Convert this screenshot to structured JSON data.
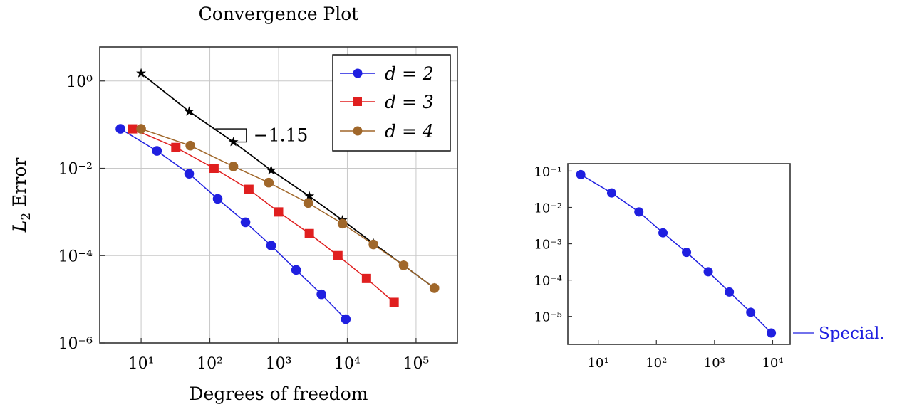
{
  "chart_data": [
    {
      "type": "line",
      "title": "Convergence Plot",
      "xlabel": "Degrees of freedom",
      "ylabel": "L₂ Error",
      "xscale": "log",
      "yscale": "log",
      "xlim": [
        2.5,
        400000
      ],
      "ylim": [
        1e-06,
        6
      ],
      "grid": true,
      "legend_position": "top-right",
      "xticks": [
        {
          "value": 10,
          "label": "10¹"
        },
        {
          "value": 100,
          "label": "10²"
        },
        {
          "value": 1000,
          "label": "10³"
        },
        {
          "value": 10000,
          "label": "10⁴"
        },
        {
          "value": 100000,
          "label": "10⁵"
        }
      ],
      "yticks": [
        {
          "value": 1,
          "label": "10⁰"
        },
        {
          "value": 0.01,
          "label": "10⁻²"
        },
        {
          "value": 0.0001,
          "label": "10⁻⁴"
        },
        {
          "value": 1e-06,
          "label": "10⁻⁶"
        }
      ],
      "series": [
        {
          "name": "d = 2",
          "color": "#1f1fe0",
          "marker": "circle",
          "x": [
            5,
            17,
            50,
            130,
            330,
            780,
            1800,
            4200,
            9500
          ],
          "y": [
            0.08,
            0.025,
            0.0075,
            0.002,
            0.00058,
            0.00017,
            4.7e-05,
            1.3e-05,
            3.5e-06
          ]
        },
        {
          "name": "d = 3",
          "color": "#e01f1f",
          "marker": "square",
          "x": [
            7.5,
            32,
            115,
            370,
            1000,
            2800,
            7300,
            19000,
            48000
          ],
          "y": [
            0.08,
            0.03,
            0.01,
            0.0033,
            0.001,
            0.00032,
            0.0001,
            3e-05,
            8.5e-06
          ]
        },
        {
          "name": "d = 4",
          "color": "#a0672a",
          "marker": "circle",
          "x": [
            10,
            52,
            220,
            720,
            2700,
            8500,
            24000,
            66000,
            185000
          ],
          "y": [
            0.08,
            0.033,
            0.011,
            0.0047,
            0.0016,
            0.00054,
            0.00018,
            6e-05,
            1.8e-05
          ]
        },
        {
          "name": "",
          "color": "#000000",
          "marker": "star",
          "x": [
            10,
            50,
            220,
            780,
            2800,
            8500,
            24000,
            66000,
            185000
          ],
          "y": [
            1.5,
            0.2,
            0.04,
            0.009,
            0.0023,
            0.00065,
            0.00019,
            6e-05,
            1.8e-05
          ]
        }
      ],
      "slope_annotation": {
        "label": "−1.15",
        "corner": [
          220,
          0.04
        ],
        "top": [
          120,
          0.08
        ],
        "right": [
          340,
          0.04
        ]
      }
    },
    {
      "type": "line",
      "title": "",
      "xlabel": "",
      "ylabel": "",
      "xscale": "log",
      "yscale": "log",
      "xlim": [
        3,
        20000
      ],
      "ylim": [
        1.7e-06,
        0.16
      ],
      "grid": false,
      "xticks": [
        {
          "value": 10,
          "label": "10¹"
        },
        {
          "value": 100,
          "label": "10²"
        },
        {
          "value": 1000,
          "label": "10³"
        },
        {
          "value": 10000,
          "label": "10⁴"
        }
      ],
      "yticks": [
        {
          "value": 0.1,
          "label": "10⁻¹"
        },
        {
          "value": 0.01,
          "label": "10⁻²"
        },
        {
          "value": 0.001,
          "label": "10⁻³"
        },
        {
          "value": 0.0001,
          "label": "10⁻⁴"
        },
        {
          "value": 1e-05,
          "label": "10⁻⁵"
        }
      ],
      "series": [
        {
          "name": "Special.",
          "color": "#1f1fe0",
          "marker": "circle",
          "x": [
            5,
            17,
            50,
            130,
            330,
            780,
            1800,
            4200,
            9500
          ],
          "y": [
            0.08,
            0.025,
            0.0075,
            0.002,
            0.00058,
            0.00017,
            4.7e-05,
            1.3e-05,
            3.5e-06
          ]
        }
      ],
      "annotation": {
        "label": "Special."
      }
    }
  ]
}
